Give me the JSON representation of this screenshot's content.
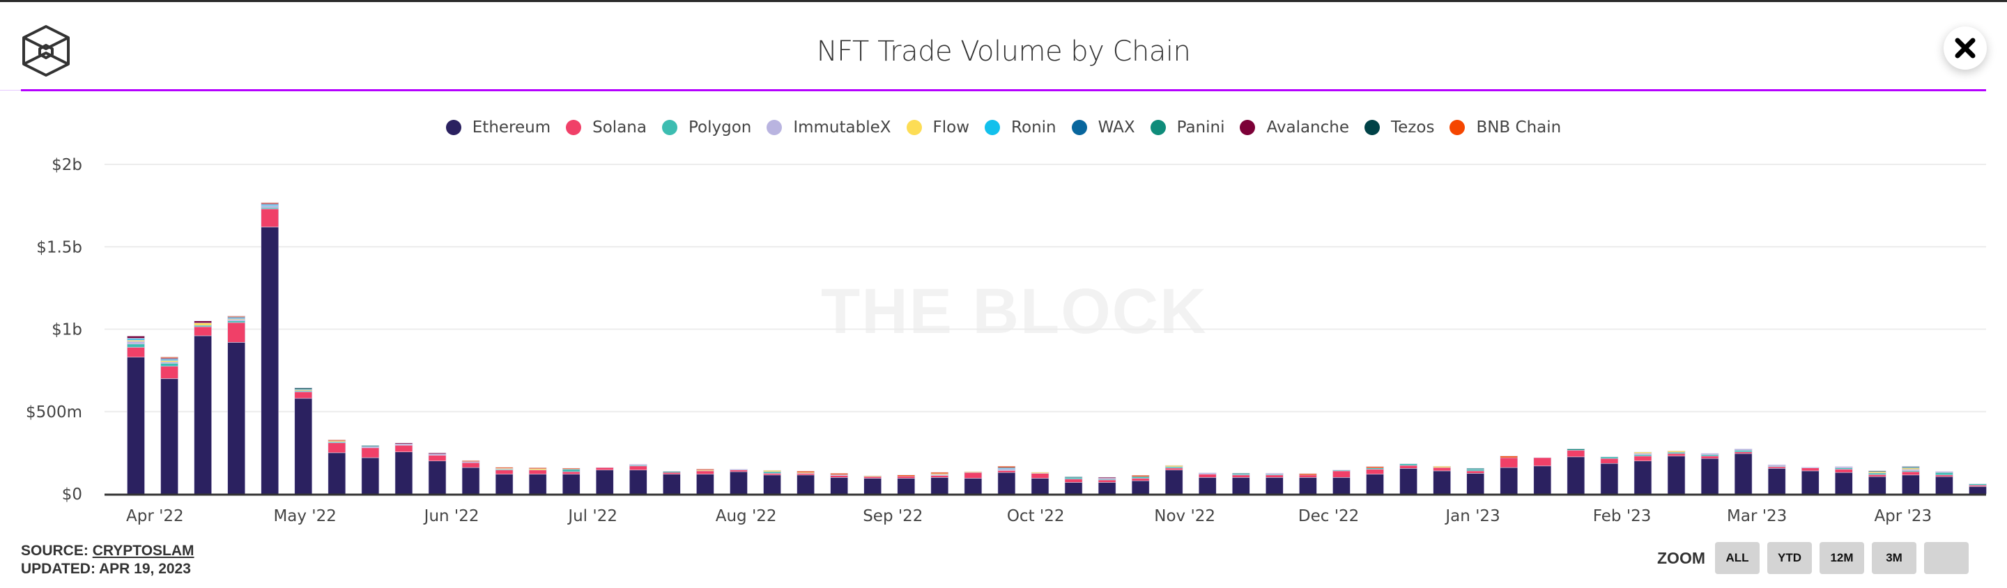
{
  "header": {
    "title": "NFT Trade Volume by Chain",
    "close_icon": "close-x-icon",
    "logo_icon": "the-block-cube-logo-icon"
  },
  "watermark": "THE BLOCK",
  "footer": {
    "source_label": "SOURCE: ",
    "source_link": "CRYPTOSLAM",
    "updated": "UPDATED: APR 19, 2023"
  },
  "zoom": {
    "label": "ZOOM",
    "buttons": [
      "ALL",
      "YTD",
      "12M",
      "3M",
      ""
    ]
  },
  "chart_data": {
    "type": "bar",
    "stacked": true,
    "title": "NFT Trade Volume by Chain",
    "xlabel": "",
    "ylabel": "",
    "ylim": [
      0,
      2000000000
    ],
    "yticks": [
      {
        "value": 0,
        "label": "$0"
      },
      {
        "value": 500000000,
        "label": "$500m"
      },
      {
        "value": 1000000000,
        "label": "$1b"
      },
      {
        "value": 1500000000,
        "label": "$1.5b"
      },
      {
        "value": 2000000000,
        "label": "$2b"
      }
    ],
    "grid": true,
    "legend_position": "top-center",
    "xticks": [
      {
        "index": 0,
        "label": "Apr '22"
      },
      {
        "index": 4.4,
        "label": "May '22"
      },
      {
        "index": 8.9,
        "label": "Jun '22"
      },
      {
        "index": 13.2,
        "label": "Jul '22"
      },
      {
        "index": 17.6,
        "label": "Aug '22"
      },
      {
        "index": 22.0,
        "label": "Sep '22"
      },
      {
        "index": 26.3,
        "label": "Oct '22"
      },
      {
        "index": 30.7,
        "label": "Nov '22"
      },
      {
        "index": 35.0,
        "label": "Dec '22"
      },
      {
        "index": 39.4,
        "label": "Jan '23"
      },
      {
        "index": 43.8,
        "label": "Feb '23"
      },
      {
        "index": 47.8,
        "label": "Mar '23"
      },
      {
        "index": 52.2,
        "label": "Apr '23"
      }
    ],
    "series": [
      {
        "name": "Ethereum",
        "color": "#2b2160",
        "values": [
          830,
          700,
          960,
          920,
          1620,
          580,
          250,
          220,
          255,
          200,
          160,
          120,
          120,
          120,
          145,
          145,
          120,
          120,
          135,
          115,
          115,
          100,
          95,
          95,
          100,
          95,
          130,
          95,
          70,
          70,
          80,
          145,
          100,
          100,
          100,
          100,
          100,
          120,
          155,
          140,
          125,
          160,
          170,
          225,
          185,
          200,
          230,
          215,
          245,
          155,
          140,
          130,
          105,
          115,
          105,
          45
        ]
      },
      {
        "name": "Solana",
        "color": "#f04068",
        "values": [
          60,
          75,
          55,
          120,
          110,
          40,
          60,
          60,
          40,
          35,
          30,
          25,
          25,
          15,
          15,
          25,
          10,
          20,
          10,
          10,
          10,
          12,
          10,
          12,
          12,
          35,
          12,
          30,
          20,
          15,
          15,
          12,
          20,
          15,
          15,
          15,
          40,
          30,
          18,
          20,
          15,
          60,
          50,
          40,
          30,
          30,
          15,
          15,
          10,
          10,
          18,
          20,
          12,
          20,
          10,
          8
        ]
      },
      {
        "name": "Polygon",
        "color": "#3dbdb1",
        "values": [
          20,
          18,
          8,
          10,
          8,
          6,
          6,
          0,
          0,
          0,
          0,
          5,
          0,
          15,
          0,
          5,
          0,
          0,
          0,
          10,
          0,
          0,
          0,
          0,
          0,
          0,
          0,
          0,
          8,
          5,
          10,
          8,
          0,
          5,
          5,
          0,
          5,
          8,
          10,
          0,
          10,
          0,
          0,
          0,
          10,
          8,
          8,
          8,
          10,
          4,
          0,
          8,
          10,
          6,
          15,
          8
        ]
      },
      {
        "name": "ImmutableX",
        "color": "#b9b4e0",
        "values": [
          15,
          8,
          0,
          8,
          10,
          0,
          0,
          8,
          8,
          8,
          6,
          0,
          0,
          0,
          0,
          5,
          0,
          0,
          5,
          0,
          0,
          5,
          0,
          0,
          5,
          0,
          8,
          0,
          0,
          5,
          0,
          0,
          8,
          0,
          6,
          0,
          0,
          0,
          0,
          0,
          0,
          0,
          0,
          0,
          0,
          8,
          0,
          8,
          8,
          8,
          4,
          8,
          0,
          8,
          6,
          0
        ]
      },
      {
        "name": "Flow",
        "color": "#fddd55",
        "values": [
          8,
          8,
          15,
          5,
          0,
          6,
          6,
          0,
          0,
          0,
          0,
          5,
          8,
          0,
          0,
          0,
          0,
          5,
          0,
          8,
          5,
          0,
          5,
          0,
          6,
          5,
          0,
          6,
          0,
          0,
          0,
          8,
          0,
          0,
          0,
          0,
          0,
          0,
          0,
          8,
          0,
          0,
          0,
          0,
          0,
          8,
          8,
          0,
          0,
          0,
          0,
          0,
          8,
          8,
          0,
          0
        ]
      },
      {
        "name": "Ronin",
        "color": "#12c0ec",
        "values": [
          8,
          6,
          0,
          4,
          6,
          0,
          0,
          0,
          0,
          0,
          0,
          0,
          0,
          0,
          0,
          0,
          0,
          0,
          0,
          0,
          0,
          0,
          0,
          0,
          0,
          0,
          5,
          0,
          0,
          0,
          0,
          0,
          0,
          0,
          0,
          0,
          0,
          0,
          0,
          0,
          0,
          0,
          0,
          0,
          0,
          0,
          0,
          0,
          0,
          0,
          0,
          0,
          0,
          0,
          0,
          0
        ]
      },
      {
        "name": "WAX",
        "color": "#08669d",
        "values": [
          5,
          5,
          0,
          4,
          4,
          0,
          0,
          0,
          0,
          0,
          0,
          0,
          0,
          0,
          0,
          0,
          0,
          0,
          0,
          0,
          0,
          0,
          0,
          0,
          0,
          0,
          5,
          0,
          0,
          0,
          0,
          0,
          0,
          0,
          0,
          0,
          0,
          0,
          0,
          0,
          0,
          0,
          0,
          0,
          0,
          0,
          0,
          0,
          0,
          0,
          0,
          0,
          0,
          0,
          0,
          0
        ]
      },
      {
        "name": "Panini",
        "color": "#0f8c7a",
        "values": [
          0,
          0,
          0,
          0,
          0,
          6,
          0,
          6,
          0,
          0,
          0,
          0,
          0,
          0,
          0,
          0,
          6,
          0,
          0,
          0,
          0,
          0,
          0,
          0,
          0,
          0,
          0,
          0,
          6,
          0,
          0,
          0,
          0,
          6,
          0,
          0,
          0,
          0,
          0,
          0,
          6,
          0,
          0,
          8,
          0,
          0,
          0,
          0,
          0,
          0,
          0,
          0,
          0,
          6,
          0,
          0
        ]
      },
      {
        "name": "Avalanche",
        "color": "#7c0037",
        "values": [
          12,
          5,
          12,
          0,
          5,
          0,
          0,
          0,
          6,
          6,
          0,
          0,
          0,
          0,
          0,
          0,
          0,
          0,
          0,
          0,
          0,
          0,
          0,
          0,
          0,
          0,
          0,
          0,
          0,
          6,
          0,
          0,
          0,
          0,
          0,
          0,
          0,
          0,
          0,
          0,
          0,
          0,
          0,
          0,
          0,
          0,
          0,
          0,
          0,
          0,
          0,
          0,
          0,
          0,
          0,
          0
        ]
      },
      {
        "name": "Tezos",
        "color": "#004247",
        "values": [
          0,
          0,
          0,
          4,
          0,
          6,
          0,
          0,
          0,
          0,
          0,
          0,
          0,
          0,
          0,
          0,
          0,
          0,
          0,
          0,
          0,
          0,
          0,
          0,
          0,
          0,
          0,
          0,
          0,
          0,
          0,
          0,
          0,
          0,
          0,
          0,
          0,
          0,
          0,
          0,
          0,
          0,
          0,
          0,
          0,
          0,
          0,
          0,
          0,
          0,
          0,
          0,
          5,
          4,
          0,
          0
        ]
      },
      {
        "name": "BNB Chain",
        "color": "#f54600",
        "values": [
          0,
          6,
          0,
          5,
          5,
          0,
          6,
          0,
          0,
          0,
          6,
          6,
          6,
          6,
          0,
          0,
          0,
          6,
          0,
          0,
          8,
          8,
          0,
          8,
          8,
          0,
          8,
          0,
          0,
          0,
          8,
          0,
          0,
          0,
          0,
          8,
          0,
          8,
          0,
          0,
          0,
          10,
          0,
          0,
          0,
          0,
          0,
          0,
          0,
          0,
          0,
          0,
          0,
          0,
          0,
          0
        ]
      }
    ],
    "units": "millions USD",
    "bar_count": 56,
    "frequency": "weekly"
  }
}
